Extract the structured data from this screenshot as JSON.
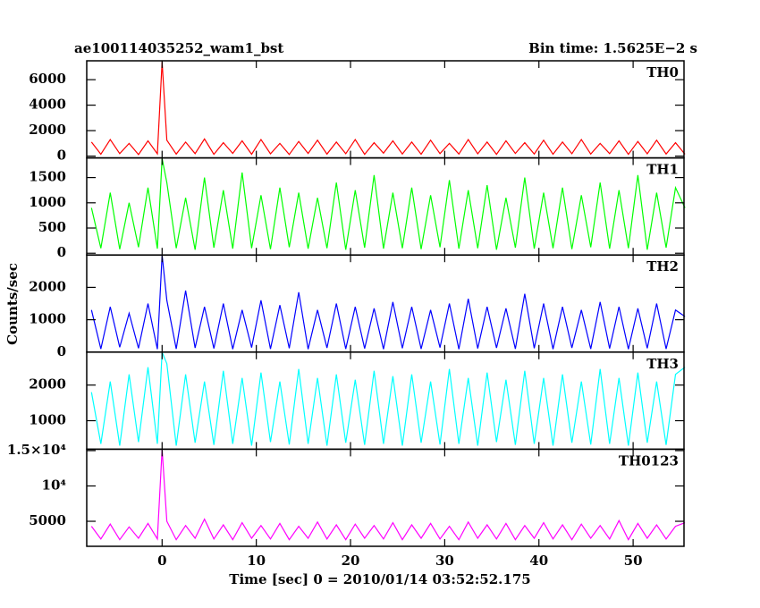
{
  "figure": {
    "title": "ae100114035252_wam1_bst",
    "subtitle": "Bin time: 1.5625E−2 s",
    "y_label": "Counts/sec",
    "x_label": "Time [sec] 0 = 2010/01/14 03:52:52.175",
    "xlim": [
      -8,
      55.4
    ],
    "xticks": [
      0,
      10,
      20,
      30,
      40,
      50
    ]
  },
  "chart_data": [
    {
      "type": "line",
      "name": "TH0",
      "color": "#ff0000",
      "ylim": [
        -140,
        7480
      ],
      "yticks": [
        0,
        2000,
        4000,
        6000
      ],
      "x": [
        -7.5,
        -6.5,
        -5.5,
        -4.5,
        -3.5,
        -2.5,
        -1.5,
        -0.5,
        0,
        0.5,
        1.5,
        2.5,
        3.5,
        4.5,
        5.5,
        6.5,
        7.5,
        8.5,
        9.5,
        10.5,
        11.5,
        12.5,
        13.5,
        14.5,
        15.5,
        16.5,
        17.5,
        18.5,
        19.5,
        20.5,
        21.5,
        22.5,
        23.5,
        24.5,
        25.5,
        26.5,
        27.5,
        28.5,
        29.5,
        30.5,
        31.5,
        32.5,
        33.5,
        34.5,
        35.5,
        36.5,
        37.5,
        38.5,
        39.5,
        40.5,
        41.5,
        42.5,
        43.5,
        44.5,
        45.5,
        46.5,
        47.5,
        48.5,
        49.5,
        50.5,
        51.5,
        52.5,
        53.5,
        54.5,
        55.5
      ],
      "values": [
        1100,
        150,
        1300,
        200,
        1000,
        120,
        1200,
        180,
        7400,
        1250,
        160,
        1100,
        200,
        1350,
        140,
        1050,
        220,
        1200,
        150,
        1300,
        180,
        1000,
        130,
        1150,
        210,
        1250,
        160,
        1100,
        190,
        1300,
        140,
        1050,
        230,
        1200,
        170,
        1100,
        150,
        1250,
        200,
        1000,
        160,
        1300,
        180,
        1100,
        140,
        1200,
        210,
        1050,
        170,
        1250,
        150,
        1100,
        190,
        1300,
        160,
        1000,
        200,
        1200,
        140,
        1150,
        180,
        1250,
        170,
        1050,
        150
      ]
    },
    {
      "type": "line",
      "name": "TH1",
      "color": "#00ff00",
      "ylim": [
        -35,
        1890
      ],
      "yticks": [
        0,
        500,
        1000,
        1500
      ],
      "x": [
        -7.5,
        -6.5,
        -5.5,
        -4.5,
        -3.5,
        -2.5,
        -1.5,
        -0.5,
        0,
        0.5,
        1.5,
        2.5,
        3.5,
        4.5,
        5.5,
        6.5,
        7.5,
        8.5,
        9.5,
        10.5,
        11.5,
        12.5,
        13.5,
        14.5,
        15.5,
        16.5,
        17.5,
        18.5,
        19.5,
        20.5,
        21.5,
        22.5,
        23.5,
        24.5,
        25.5,
        26.5,
        27.5,
        28.5,
        29.5,
        30.5,
        31.5,
        32.5,
        33.5,
        34.5,
        35.5,
        36.5,
        37.5,
        38.5,
        39.5,
        40.5,
        41.5,
        42.5,
        43.5,
        44.5,
        45.5,
        46.5,
        47.5,
        48.5,
        49.5,
        50.5,
        51.5,
        52.5,
        53.5,
        54.5,
        55.5
      ],
      "values": [
        900,
        100,
        1200,
        80,
        1000,
        120,
        1300,
        90,
        1880,
        1400,
        100,
        1100,
        70,
        1500,
        110,
        1250,
        90,
        1600,
        100,
        1150,
        80,
        1300,
        120,
        1200,
        90,
        1100,
        100,
        1400,
        70,
        1250,
        110,
        1550,
        90,
        1200,
        100,
        1300,
        80,
        1150,
        120,
        1450,
        90,
        1250,
        100,
        1350,
        70,
        1100,
        110,
        1500,
        90,
        1200,
        100,
        1300,
        80,
        1150,
        120,
        1400,
        90,
        1250,
        100,
        1550,
        70,
        1200,
        110,
        1300,
        900
      ]
    },
    {
      "type": "line",
      "name": "TH2",
      "color": "#0000ff",
      "ylim": [
        0,
        3000
      ],
      "yticks": [
        0,
        1000,
        2000
      ],
      "x": [
        -7.5,
        -6.5,
        -5.5,
        -4.5,
        -3.5,
        -2.5,
        -1.5,
        -0.5,
        0,
        0.5,
        1.5,
        2.5,
        3.5,
        4.5,
        5.5,
        6.5,
        7.5,
        8.5,
        9.5,
        10.5,
        11.5,
        12.5,
        13.5,
        14.5,
        15.5,
        16.5,
        17.5,
        18.5,
        19.5,
        20.5,
        21.5,
        22.5,
        23.5,
        24.5,
        25.5,
        26.5,
        27.5,
        28.5,
        29.5,
        30.5,
        31.5,
        32.5,
        33.5,
        34.5,
        35.5,
        36.5,
        37.5,
        38.5,
        39.5,
        40.5,
        41.5,
        42.5,
        43.5,
        44.5,
        45.5,
        46.5,
        47.5,
        48.5,
        49.5,
        50.5,
        51.5,
        52.5,
        53.5,
        54.5,
        55.5
      ],
      "values": [
        1300,
        100,
        1400,
        150,
        1200,
        120,
        1500,
        90,
        3000,
        1600,
        100,
        1900,
        130,
        1400,
        110,
        1500,
        90,
        1300,
        140,
        1600,
        100,
        1450,
        120,
        1850,
        90,
        1300,
        130,
        1500,
        100,
        1400,
        110,
        1350,
        90,
        1550,
        120,
        1400,
        100,
        1300,
        140,
        1500,
        90,
        1650,
        110,
        1400,
        130,
        1350,
        100,
        1800,
        120,
        1500,
        90,
        1400,
        130,
        1300,
        100,
        1550,
        110,
        1400,
        90,
        1350,
        120,
        1500,
        100,
        1300,
        1100
      ]
    },
    {
      "type": "line",
      "name": "TH3",
      "color": "#00ffff",
      "ylim": [
        200,
        2925
      ],
      "yticks": [
        1000,
        2000
      ],
      "x": [
        -7.5,
        -6.5,
        -5.5,
        -4.5,
        -3.5,
        -2.5,
        -1.5,
        -0.5,
        0,
        0.5,
        1.5,
        2.5,
        3.5,
        4.5,
        5.5,
        6.5,
        7.5,
        8.5,
        9.5,
        10.5,
        11.5,
        12.5,
        13.5,
        14.5,
        15.5,
        16.5,
        17.5,
        18.5,
        19.5,
        20.5,
        21.5,
        22.5,
        23.5,
        24.5,
        25.5,
        26.5,
        27.5,
        28.5,
        29.5,
        30.5,
        31.5,
        32.5,
        33.5,
        34.5,
        35.5,
        36.5,
        37.5,
        38.5,
        39.5,
        40.5,
        41.5,
        42.5,
        43.5,
        44.5,
        45.5,
        46.5,
        47.5,
        48.5,
        49.5,
        50.5,
        51.5,
        52.5,
        53.5,
        54.5,
        55.5
      ],
      "values": [
        1800,
        350,
        2100,
        300,
        2300,
        400,
        2500,
        350,
        2925,
        2600,
        300,
        2300,
        380,
        2100,
        320,
        2400,
        350,
        2200,
        300,
        2350,
        400,
        2100,
        330,
        2450,
        350,
        2200,
        300,
        2300,
        380,
        2150,
        320,
        2400,
        350,
        2250,
        300,
        2300,
        380,
        2100,
        330,
        2450,
        350,
        2200,
        300,
        2350,
        400,
        2150,
        320,
        2400,
        350,
        2200,
        300,
        2300,
        380,
        2100,
        330,
        2450,
        350,
        2200,
        300,
        2350,
        380,
        2100,
        320,
        2300,
        2500
      ]
    },
    {
      "type": "line",
      "name": "TH0123",
      "color": "#ff00ff",
      "ylim": [
        1460,
        15200
      ],
      "yticks": [
        5000,
        {
          "value": 10000,
          "label": "10⁴"
        },
        {
          "value": 15000,
          "label": "1.5×10⁴"
        }
      ],
      "x": [
        -7.5,
        -6.5,
        -5.5,
        -4.5,
        -3.5,
        -2.5,
        -1.5,
        -0.5,
        0,
        0.5,
        1.5,
        2.5,
        3.5,
        4.5,
        5.5,
        6.5,
        7.5,
        8.5,
        9.5,
        10.5,
        11.5,
        12.5,
        13.5,
        14.5,
        15.5,
        16.5,
        17.5,
        18.5,
        19.5,
        20.5,
        21.5,
        22.5,
        23.5,
        24.5,
        25.5,
        26.5,
        27.5,
        28.5,
        29.5,
        30.5,
        31.5,
        32.5,
        33.5,
        34.5,
        35.5,
        36.5,
        37.5,
        38.5,
        39.5,
        40.5,
        41.5,
        42.5,
        43.5,
        44.5,
        45.5,
        46.5,
        47.5,
        48.5,
        49.5,
        50.5,
        51.5,
        52.5,
        53.5,
        54.5,
        55.5
      ],
      "values": [
        4300,
        2500,
        4600,
        2400,
        4200,
        2600,
        4700,
        2500,
        15200,
        5000,
        2400,
        4400,
        2600,
        5300,
        2500,
        4500,
        2400,
        4800,
        2600,
        4400,
        2500,
        4700,
        2400,
        4300,
        2600,
        4900,
        2500,
        4500,
        2400,
        4600,
        2600,
        4400,
        2500,
        4800,
        2400,
        4500,
        2600,
        4700,
        2500,
        4300,
        2400,
        4900,
        2600,
        4500,
        2500,
        4700,
        2400,
        4400,
        2600,
        4800,
        2500,
        4500,
        2400,
        4600,
        2600,
        4400,
        2500,
        5100,
        2400,
        4700,
        2600,
        4500,
        2500,
        4300,
        4800
      ]
    }
  ]
}
